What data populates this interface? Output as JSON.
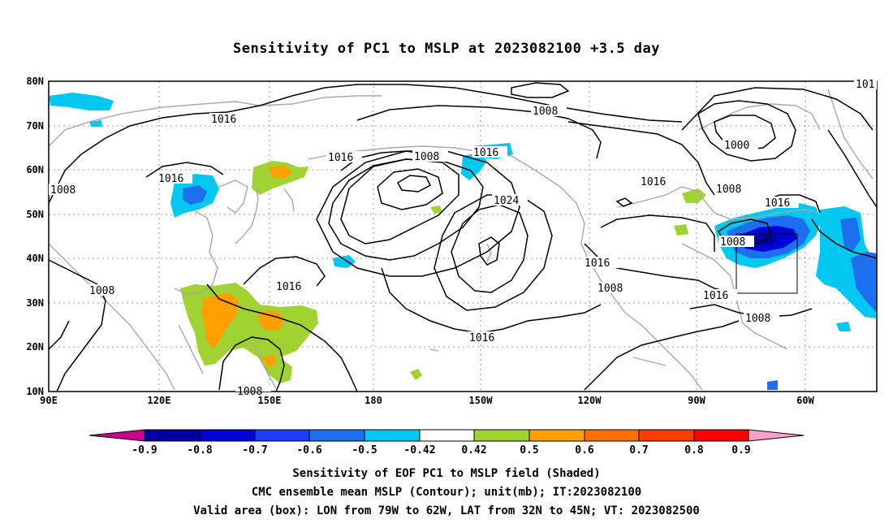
{
  "title": "Sensitivity of PC1 to MSLP at 2023082100 +3.5 day",
  "latitude_labels": [
    "80N",
    "70N",
    "60N",
    "50N",
    "40N",
    "30N",
    "20N",
    "10N"
  ],
  "longitude_labels": [
    "90E",
    "120E",
    "150E",
    "180",
    "150W",
    "120W",
    "90W",
    "60W"
  ],
  "contour_labels": [
    "1016",
    "1008",
    "1016",
    "1008",
    "1016",
    "1016",
    "1008",
    "1016",
    "1024",
    "1016",
    "1008",
    "1000",
    "1016",
    "1016",
    "1008",
    "1008",
    "1016",
    "1008",
    "1008",
    "1016",
    "1016",
    "1008",
    "101"
  ],
  "colorbar": {
    "ticks": [
      "-0.9",
      "-0.8",
      "-0.7",
      "-0.6",
      "-0.5",
      "-0.42",
      "0.42",
      "0.5",
      "0.6",
      "0.7",
      "0.8",
      "0.9"
    ],
    "colors": [
      "#c8008c",
      "#0000a0",
      "#0000dc",
      "#1e3cff",
      "#1e6ef0",
      "#3c96f5",
      "#00c8f0",
      "#ffffff",
      "#a0d232",
      "#ffa000",
      "#ff6e00",
      "#ff3c00",
      "#ff0000",
      "#ffa0c8"
    ]
  },
  "captions": {
    "line1": "Sensitivity of EOF PC1 to MSLP field (Shaded)",
    "line2": "CMC ensemble mean MSLP (Contour); unit(mb); IT:2023082100",
    "line3": "Valid area (box): LON from 79W to 62W, LAT from 32N to 45N; VT: 2023082500"
  }
}
